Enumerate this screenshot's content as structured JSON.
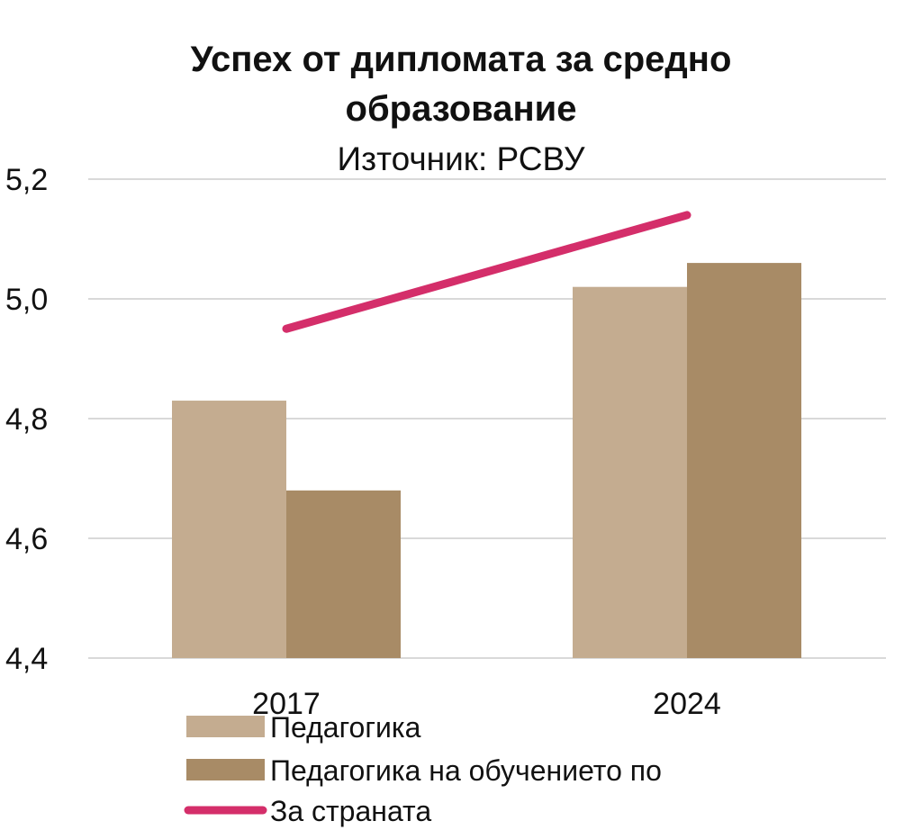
{
  "chart_data": {
    "type": "bar",
    "title_lines": [
      "Успех от дипломата за средно",
      "образование"
    ],
    "subtitle": "Източник: РСВУ",
    "categories": [
      "2017",
      "2024"
    ],
    "series": [
      {
        "name": "Педагогика",
        "type": "bar",
        "color": "#c4ac90",
        "values": [
          4.83,
          5.02
        ]
      },
      {
        "name": "Педагогика на обучението по",
        "type": "bar",
        "color": "#a88b66",
        "values": [
          4.68,
          5.06
        ]
      },
      {
        "name": "За страната",
        "type": "line",
        "color": "#d42e6a",
        "values": [
          4.95,
          5.14
        ]
      }
    ],
    "ylim": [
      4.4,
      5.2
    ],
    "yticks": [
      4.4,
      4.6,
      4.8,
      5.0,
      5.2
    ],
    "ytick_labels": [
      "4,4",
      "4,6",
      "4,8",
      "5,0",
      "5,2"
    ],
    "grid": true,
    "legend_position": "bottom-left",
    "grid_color": "#d9d9d9"
  }
}
